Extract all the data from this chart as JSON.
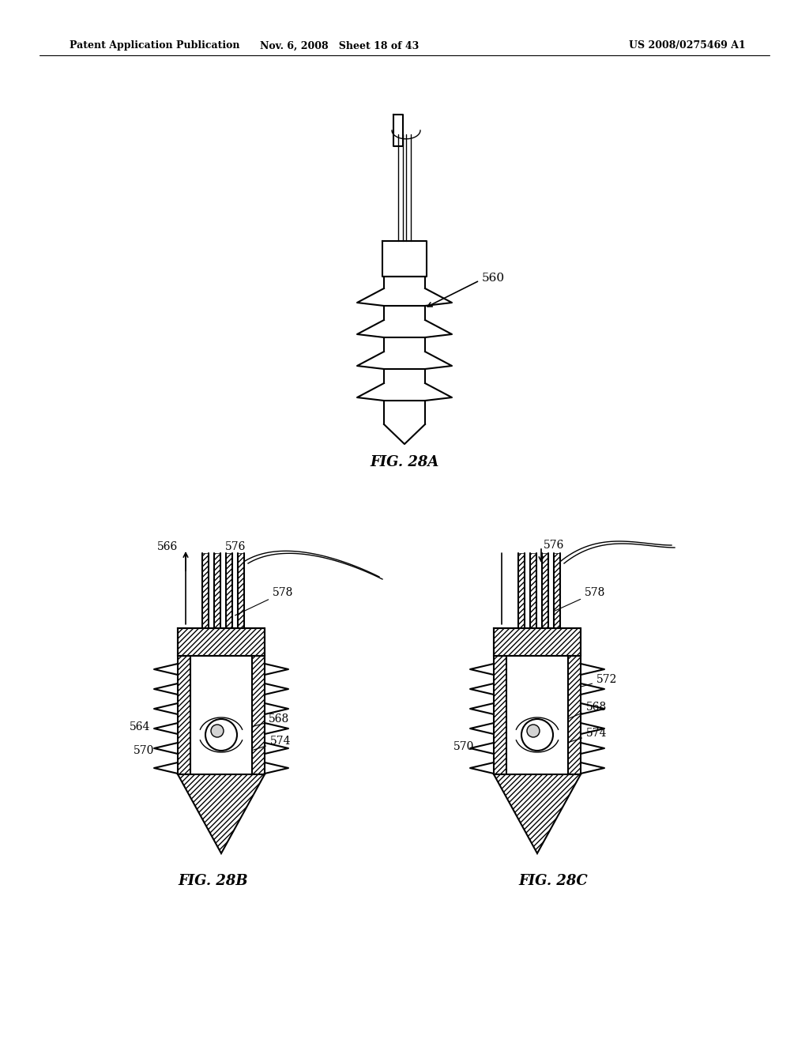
{
  "bg_color": "#ffffff",
  "line_color": "#000000",
  "hatch_color": "#000000",
  "header_left": "Patent Application Publication",
  "header_mid": "Nov. 6, 2008   Sheet 18 of 43",
  "header_right": "US 2008/0275469 A1",
  "fig_labels": [
    "FIG. 28A",
    "FIG. 28B",
    "FIG. 28C"
  ],
  "ref_numbers": {
    "fig28a": [
      "560"
    ],
    "fig28b": [
      "566",
      "576",
      "578",
      "564",
      "568",
      "570",
      "574"
    ],
    "fig28c": [
      "576",
      "578",
      "572",
      "568",
      "570",
      "574"
    ]
  }
}
